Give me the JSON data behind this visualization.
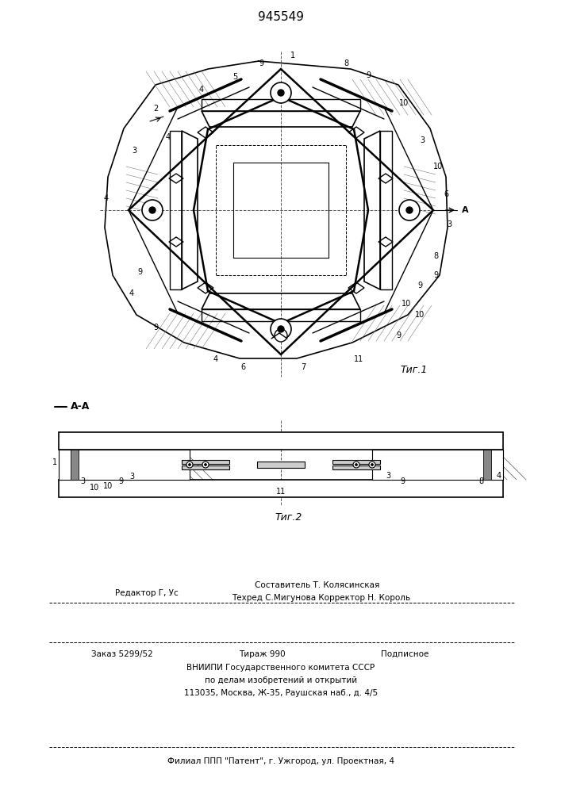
{
  "patent_number": "945549",
  "fig1_caption": "Τиг.1",
  "fig2_caption": "Τиг.2",
  "section_label": "A-A",
  "text_editor": "Редактор Г, Ус",
  "text_composer": "Составитель Т. Колясинская",
  "text_techred": "Техред С.Мигунова Корректор Н. Король",
  "text_order": "Заказ 5299/52",
  "text_tirazh": "Тираж 990",
  "text_podpisnoe": "Подписное",
  "text_vniiipi": "ВНИИПИ Государственного комитета СССР",
  "text_podealam": "по делам изобретений и открытий",
  "text_address": "113035, Москва, Ж-35, Раушская наб., д. 4/5",
  "text_filial": "Филиал ППП \"Патент\", г. Ужгород, ул. Проектная, 4",
  "bg_color": "#ffffff",
  "line_color": "#000000"
}
